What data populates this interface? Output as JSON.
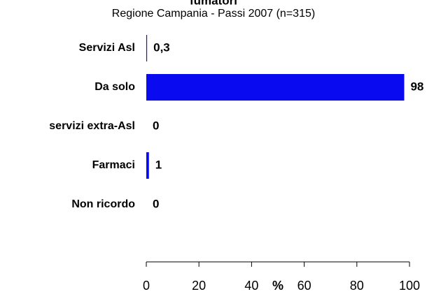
{
  "chart_data": {
    "type": "bar",
    "orientation": "horizontal",
    "title": "fumatori",
    "subtitle": "Regione Campania - Passi 2007 (n=315)",
    "categories": [
      "Servizi Asl",
      "Da solo",
      "servizi extra-Asl",
      "Farmaci",
      "Non ricordo"
    ],
    "values": [
      0.3,
      98,
      0,
      1,
      0
    ],
    "value_labels": [
      "0,3",
      "98",
      "0",
      "1",
      "0"
    ],
    "color": "#0a0af0",
    "xlabel": "%",
    "xlim": [
      0,
      100
    ],
    "xticks": [
      0,
      20,
      40,
      60,
      80,
      100
    ]
  }
}
